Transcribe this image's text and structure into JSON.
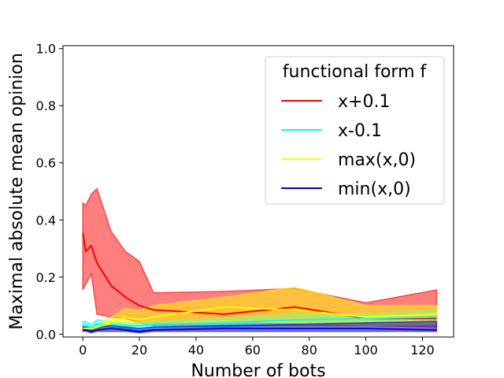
{
  "chart_data": {
    "type": "line",
    "title": "",
    "xlabel": "Number of bots",
    "ylabel": "Maximal absolute mean opinion",
    "xlim": [
      -7,
      131
    ],
    "ylim": [
      -0.01,
      1.01
    ],
    "xticks": [
      0,
      20,
      40,
      60,
      80,
      100,
      120
    ],
    "yticks": [
      0.0,
      0.2,
      0.4,
      0.6,
      0.8,
      1.0
    ],
    "xtick_labels": [
      "0",
      "20",
      "40",
      "60",
      "80",
      "100",
      "120"
    ],
    "ytick_labels": [
      "0.0",
      "0.2",
      "0.4",
      "0.6",
      "0.8",
      "1.0"
    ],
    "grid": false,
    "legend": {
      "title": "functional form f",
      "placement": "top-right"
    },
    "series": [
      {
        "name": "x+0.1",
        "color": "#ff0000",
        "x": [
          0,
          1,
          3,
          5,
          10,
          15,
          20,
          25,
          50,
          75,
          100,
          125
        ],
        "mean": [
          0.355,
          0.29,
          0.31,
          0.25,
          0.17,
          0.13,
          0.1,
          0.085,
          0.07,
          0.095,
          0.055,
          0.055
        ],
        "upper": [
          0.46,
          0.45,
          0.49,
          0.51,
          0.36,
          0.29,
          0.255,
          0.145,
          0.15,
          0.16,
          0.11,
          0.155
        ],
        "lower": [
          0.155,
          0.175,
          0.21,
          0.07,
          0.06,
          0.055,
          0.04,
          0.03,
          0.03,
          0.03,
          0.03,
          0.025
        ]
      },
      {
        "name": "x-0.1",
        "color": "#00ffff",
        "x": [
          0,
          1,
          3,
          5,
          10,
          15,
          20,
          25,
          50,
          75,
          100,
          125
        ],
        "mean": [
          0.03,
          0.03,
          0.025,
          0.035,
          0.035,
          0.03,
          0.03,
          0.035,
          0.04,
          0.05,
          0.055,
          0.06
        ],
        "upper": [
          0.045,
          0.045,
          0.035,
          0.05,
          0.045,
          0.04,
          0.04,
          0.045,
          0.055,
          0.07,
          0.07,
          0.085
        ],
        "lower": [
          0.02,
          0.02,
          0.015,
          0.02,
          0.02,
          0.02,
          0.02,
          0.025,
          0.025,
          0.03,
          0.035,
          0.04
        ]
      },
      {
        "name": "max(x,0)",
        "color": "#ffff00",
        "x": [
          0,
          1,
          3,
          5,
          10,
          15,
          20,
          25,
          50,
          75,
          100,
          125
        ],
        "mean": [
          0.02,
          0.02,
          0.02,
          0.025,
          0.04,
          0.06,
          0.05,
          0.06,
          0.095,
          0.085,
          0.06,
          0.07
        ],
        "upper": [
          0.03,
          0.03,
          0.03,
          0.035,
          0.06,
          0.09,
          0.085,
          0.1,
          0.13,
          0.165,
          0.1,
          0.1
        ],
        "lower": [
          0.015,
          0.015,
          0.015,
          0.015,
          0.02,
          0.03,
          0.03,
          0.035,
          0.045,
          0.04,
          0.03,
          0.035
        ]
      },
      {
        "name": "min(x,0)",
        "color": "#0000cc",
        "x": [
          0,
          1,
          3,
          5,
          10,
          15,
          20,
          25,
          50,
          75,
          100,
          125
        ],
        "mean": [
          0.015,
          0.015,
          0.01,
          0.015,
          0.02,
          0.015,
          0.01,
          0.015,
          0.02,
          0.02,
          0.02,
          0.015
        ],
        "upper": [
          0.025,
          0.025,
          0.02,
          0.025,
          0.03,
          0.025,
          0.02,
          0.025,
          0.03,
          0.035,
          0.04,
          0.045
        ],
        "lower": [
          0.01,
          0.01,
          0.005,
          0.01,
          0.01,
          0.01,
          0.005,
          0.01,
          0.01,
          0.01,
          0.01,
          0.01
        ]
      }
    ]
  }
}
